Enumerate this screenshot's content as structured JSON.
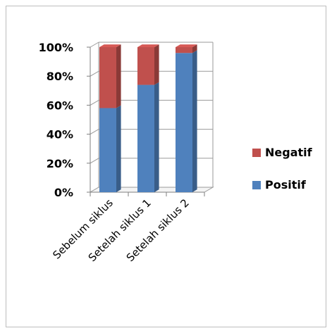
{
  "chart_data": {
    "type": "bar",
    "stacked": true,
    "three_d": true,
    "categories": [
      "Sebelum siklus",
      "Setelah siklus 1",
      "Setelah siklus 2"
    ],
    "series": [
      {
        "name": "Positif",
        "values": [
          58,
          74,
          96
        ],
        "color": "#4F81BD"
      },
      {
        "name": "Negatif",
        "values": [
          42,
          26,
          4
        ],
        "color": "#C0504D"
      }
    ],
    "ylim": [
      0,
      100
    ],
    "yticks": [
      "0%",
      "20%",
      "40%",
      "60%",
      "80%",
      "100%"
    ],
    "grid": true,
    "legend": "right"
  }
}
